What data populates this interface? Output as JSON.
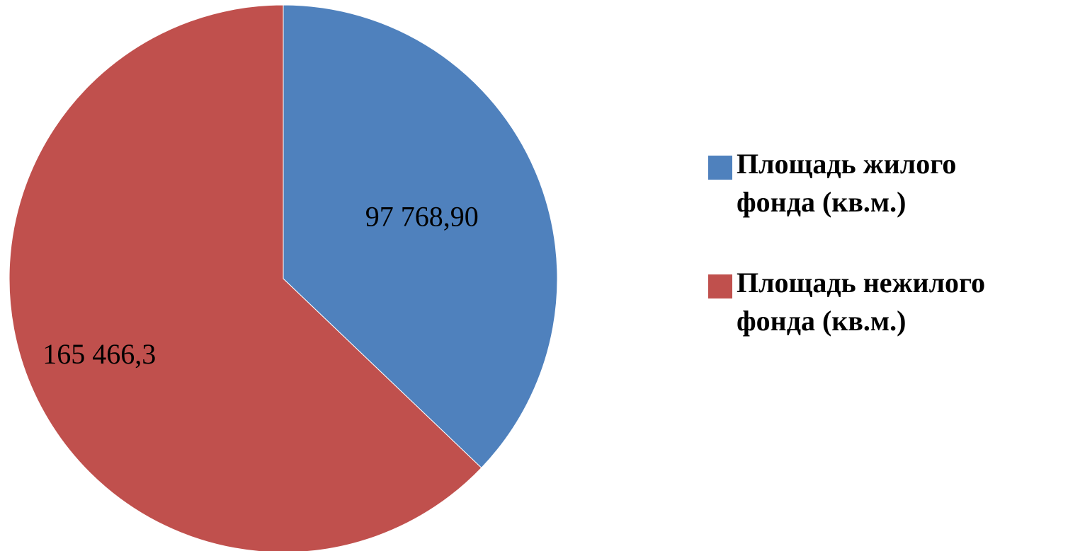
{
  "chart_data": {
    "type": "pie",
    "categories": [
      "Площадь жилого фонда (кв.м.)",
      "Площадь нежилого фонда (кв.м.)"
    ],
    "values": [
      97768.9,
      165466.3
    ],
    "value_labels": [
      "97 768,90",
      "165 466,3"
    ],
    "colors": [
      "#4f81bd",
      "#c0504d"
    ],
    "legend": "right"
  }
}
